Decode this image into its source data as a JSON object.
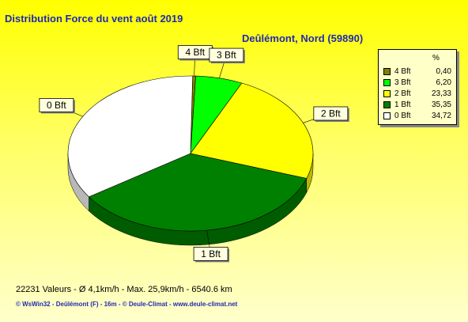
{
  "header": {
    "title": "Distribution Force du vent  août 2019",
    "subtitle": "Deûlémont, Nord (59890)"
  },
  "chart_data": {
    "type": "pie",
    "title": "Distribution Force du vent  août 2019",
    "subtitle": "Deûlémont, Nord (59890)",
    "unit_header": "%",
    "categories": [
      "4 Bft",
      "3 Bft",
      "2 Bft",
      "1 Bft",
      "0 Bft"
    ],
    "values": [
      0.4,
      6.2,
      23.33,
      35.35,
      34.72
    ],
    "value_labels": [
      "0,40",
      "6,20",
      "23,33",
      "35,35",
      "34,72"
    ],
    "colors": [
      "#808000",
      "#00ff00",
      "#ffff00",
      "#008000",
      "#ffffff"
    ],
    "legend": "right"
  },
  "stats": "22231 Valeurs   -   Ø 4,1km/h  -  Max. 25,9km/h   -   6540.6 km",
  "footer": "© WsWin32  -  Deûlémont (F) - 16m  -  © Deule-Climat - www.deule-climat.net"
}
